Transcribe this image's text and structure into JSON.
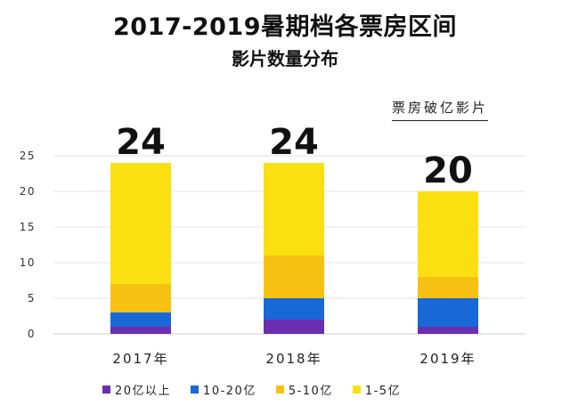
{
  "header": {
    "title": "2017-2019暑期档各票房区间",
    "subtitle": "影片数量分布",
    "note": "票房破亿影片"
  },
  "chart_data": {
    "type": "bar",
    "stacked": true,
    "categories": [
      "2017年",
      "2018年",
      "2019年"
    ],
    "series": [
      {
        "name": "20亿以上",
        "color": "#6a2fae",
        "values": [
          1,
          2,
          1
        ]
      },
      {
        "name": "10-20亿",
        "color": "#1868d8",
        "values": [
          2,
          3,
          4
        ]
      },
      {
        "name": "5-10亿",
        "color": "#f7c113",
        "values": [
          4,
          6,
          3
        ]
      },
      {
        "name": "1-5亿",
        "color": "#fae011",
        "values": [
          17,
          13,
          12
        ]
      }
    ],
    "totals": [
      "24",
      "24",
      "20"
    ],
    "yticks": [
      "0",
      "5",
      "10",
      "15",
      "20",
      "25"
    ],
    "ylim": [
      0,
      25
    ],
    "grid": true,
    "legend_position": "bottom"
  }
}
